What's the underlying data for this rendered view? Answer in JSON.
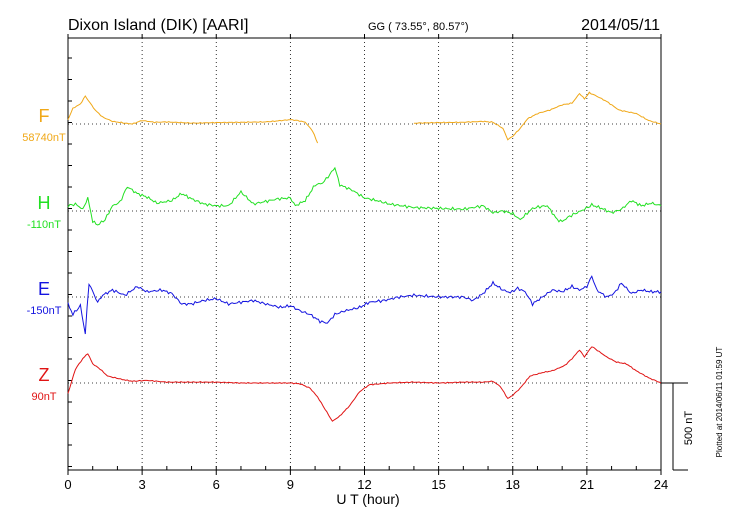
{
  "header": {
    "station": "Dixon Island (DIK)  [AARI]",
    "coords": "GG ( 73.55°,  80.57°)",
    "date": "2014/05/11"
  },
  "plotted_note": "Plotted at 2014/06/11 01:59 UT",
  "scale_bar_label": "500 nT",
  "chart_data": {
    "type": "line",
    "xlabel": "U T (hour)",
    "xlim": [
      0,
      24
    ],
    "xticks": [
      "0",
      "3",
      "6",
      "9",
      "12",
      "15",
      "18",
      "21",
      "24"
    ],
    "y_unit": "nT (500 nT scale bar; each trace offset from its baseline)",
    "grid": true,
    "series": [
      {
        "name": "F",
        "baseline_label": "58740nT",
        "color": "#f0a818",
        "segments": [
          [
            [
              0,
              -25
            ],
            [
              0.2,
              -90
            ],
            [
              0.5,
              -115
            ],
            [
              0.7,
              -160
            ],
            [
              0.9,
              -120
            ],
            [
              1.1,
              -80
            ],
            [
              1.4,
              -40
            ],
            [
              1.8,
              -15
            ],
            [
              2.3,
              -5
            ],
            [
              2.6,
              0
            ],
            [
              3,
              -20
            ],
            [
              3.5,
              -10
            ],
            [
              4,
              -12
            ],
            [
              5,
              -5
            ],
            [
              6,
              -8
            ],
            [
              7,
              -10
            ],
            [
              8,
              -12
            ],
            [
              8.5,
              -18
            ],
            [
              9.0,
              -25
            ],
            [
              9.3,
              -20
            ],
            [
              9.6,
              -10
            ],
            [
              9.9,
              40
            ],
            [
              10.1,
              110
            ]
          ],
          [
            [
              14,
              -5
            ],
            [
              15,
              -8
            ],
            [
              16,
              -10
            ],
            [
              16.8,
              -15
            ],
            [
              17.2,
              -10
            ],
            [
              17.6,
              25
            ],
            [
              17.8,
              90
            ],
            [
              18.0,
              70
            ],
            [
              18.3,
              25
            ],
            [
              18.6,
              -30
            ],
            [
              19.0,
              -60
            ],
            [
              19.5,
              -80
            ],
            [
              20.0,
              -110
            ],
            [
              20.4,
              -120
            ],
            [
              20.7,
              -175
            ],
            [
              20.9,
              -145
            ],
            [
              21.1,
              -180
            ],
            [
              21.4,
              -160
            ],
            [
              21.8,
              -130
            ],
            [
              22.3,
              -80
            ],
            [
              23,
              -60
            ],
            [
              23.5,
              -20
            ],
            [
              24,
              0
            ]
          ]
        ]
      },
      {
        "name": "H",
        "baseline_label": "-110nT",
        "color": "#22e022",
        "segments": [
          [
            [
              0,
              -30
            ],
            [
              0.3,
              -40
            ],
            [
              0.6,
              -10
            ],
            [
              0.8,
              -75
            ],
            [
              1.0,
              60
            ],
            [
              1.2,
              80
            ],
            [
              1.5,
              50
            ],
            [
              1.8,
              -30
            ],
            [
              2.1,
              -50
            ],
            [
              2.4,
              -140
            ],
            [
              2.8,
              -100
            ],
            [
              3.2,
              -80
            ],
            [
              3.6,
              -45
            ],
            [
              4.2,
              -60
            ],
            [
              4.6,
              -100
            ],
            [
              5,
              -70
            ],
            [
              5.5,
              -40
            ],
            [
              6,
              -30
            ],
            [
              6.5,
              -30
            ],
            [
              7,
              -110
            ],
            [
              7.5,
              -40
            ],
            [
              8,
              -55
            ],
            [
              8.5,
              -70
            ],
            [
              9,
              -75
            ],
            [
              9.2,
              -30
            ],
            [
              9.6,
              -60
            ],
            [
              10,
              -150
            ],
            [
              10.3,
              -160
            ],
            [
              10.6,
              -210
            ],
            [
              10.8,
              -250
            ],
            [
              11,
              -150
            ],
            [
              11.5,
              -120
            ],
            [
              12,
              -75
            ],
            [
              12.5,
              -60
            ],
            [
              13,
              -40
            ],
            [
              14,
              -20
            ],
            [
              15,
              -15
            ],
            [
              16,
              -10
            ],
            [
              16.8,
              -30
            ],
            [
              17.2,
              10
            ],
            [
              17.6,
              0
            ],
            [
              18,
              15
            ],
            [
              18.3,
              50
            ],
            [
              18.8,
              -15
            ],
            [
              19.1,
              -25
            ],
            [
              19.4,
              -30
            ],
            [
              19.6,
              10
            ],
            [
              19.8,
              50
            ],
            [
              20,
              60
            ],
            [
              20.3,
              30
            ],
            [
              20.6,
              10
            ],
            [
              20.9,
              -10
            ],
            [
              21.2,
              -35
            ],
            [
              21.6,
              -15
            ],
            [
              22.0,
              10
            ],
            [
              22.4,
              -10
            ],
            [
              22.8,
              -60
            ],
            [
              23.2,
              -30
            ],
            [
              23.6,
              -45
            ],
            [
              24,
              -30
            ]
          ]
        ]
      },
      {
        "name": "E",
        "baseline_label": "-150nT",
        "color": "#1414e0",
        "segments": [
          [
            [
              0,
              40
            ],
            [
              0.2,
              100
            ],
            [
              0.5,
              50
            ],
            [
              0.7,
              210
            ],
            [
              0.85,
              -80
            ],
            [
              1.0,
              -30
            ],
            [
              1.2,
              30
            ],
            [
              1.4,
              -10
            ],
            [
              1.8,
              -40
            ],
            [
              2.3,
              -10
            ],
            [
              2.8,
              -60
            ],
            [
              3.2,
              -30
            ],
            [
              3.8,
              -40
            ],
            [
              4.2,
              -20
            ],
            [
              4.6,
              40
            ],
            [
              5,
              40
            ],
            [
              5.5,
              20
            ],
            [
              6,
              10
            ],
            [
              6.5,
              40
            ],
            [
              7,
              30
            ],
            [
              7.5,
              20
            ],
            [
              8,
              40
            ],
            [
              8.6,
              60
            ],
            [
              9,
              50
            ],
            [
              9.4,
              80
            ],
            [
              9.8,
              100
            ],
            [
              10.2,
              140
            ],
            [
              10.5,
              150
            ],
            [
              10.8,
              100
            ],
            [
              11.2,
              80
            ],
            [
              11.8,
              60
            ],
            [
              12.2,
              30
            ],
            [
              12.8,
              20
            ],
            [
              13.4,
              0
            ],
            [
              14,
              -10
            ],
            [
              15,
              0
            ],
            [
              16,
              0
            ],
            [
              16.4,
              20
            ],
            [
              16.8,
              -20
            ],
            [
              17.2,
              -80
            ],
            [
              17.6,
              -40
            ],
            [
              17.9,
              -25
            ],
            [
              18.2,
              -50
            ],
            [
              18.5,
              -30
            ],
            [
              18.8,
              40
            ],
            [
              19.2,
              0
            ],
            [
              19.6,
              -40
            ],
            [
              20,
              -30
            ],
            [
              20.4,
              -60
            ],
            [
              20.7,
              -40
            ],
            [
              21.0,
              -60
            ],
            [
              21.2,
              -120
            ],
            [
              21.4,
              -40
            ],
            [
              21.8,
              0
            ],
            [
              22.1,
              -20
            ],
            [
              22.4,
              -80
            ],
            [
              22.8,
              -20
            ],
            [
              23.2,
              -40
            ],
            [
              23.6,
              -30
            ],
            [
              24,
              -30
            ]
          ]
        ]
      },
      {
        "name": "Z",
        "baseline_label": "90nT",
        "color": "#e01414",
        "segments": [
          [
            [
              0,
              60
            ],
            [
              0.3,
              -80
            ],
            [
              0.6,
              -140
            ],
            [
              0.8,
              -170
            ],
            [
              1.0,
              -110
            ],
            [
              1.3,
              -80
            ],
            [
              1.6,
              -40
            ],
            [
              1.9,
              -30
            ],
            [
              2.2,
              -20
            ],
            [
              2.6,
              -10
            ],
            [
              3.2,
              -15
            ],
            [
              4,
              -5
            ],
            [
              5,
              -5
            ],
            [
              6,
              -5
            ],
            [
              7,
              0
            ],
            [
              8,
              0
            ],
            [
              9,
              0
            ],
            [
              9.4,
              5
            ],
            [
              9.8,
              30
            ],
            [
              10.1,
              80
            ],
            [
              10.4,
              150
            ],
            [
              10.7,
              220
            ],
            [
              11.0,
              190
            ],
            [
              11.4,
              130
            ],
            [
              11.8,
              50
            ],
            [
              12.2,
              10
            ],
            [
              13,
              0
            ],
            [
              14,
              -5
            ],
            [
              15,
              0
            ],
            [
              16,
              -5
            ],
            [
              16.8,
              -5
            ],
            [
              17.2,
              -10
            ],
            [
              17.5,
              20
            ],
            [
              17.8,
              90
            ],
            [
              18.0,
              70
            ],
            [
              18.3,
              30
            ],
            [
              18.7,
              -40
            ],
            [
              19.2,
              -60
            ],
            [
              19.6,
              -70
            ],
            [
              20.1,
              -100
            ],
            [
              20.4,
              -140
            ],
            [
              20.7,
              -190
            ],
            [
              20.9,
              -150
            ],
            [
              21.2,
              -210
            ],
            [
              21.5,
              -180
            ],
            [
              21.8,
              -150
            ],
            [
              22.2,
              -120
            ],
            [
              22.6,
              -110
            ],
            [
              23,
              -70
            ],
            [
              23.5,
              -30
            ],
            [
              24,
              0
            ]
          ]
        ]
      }
    ]
  }
}
